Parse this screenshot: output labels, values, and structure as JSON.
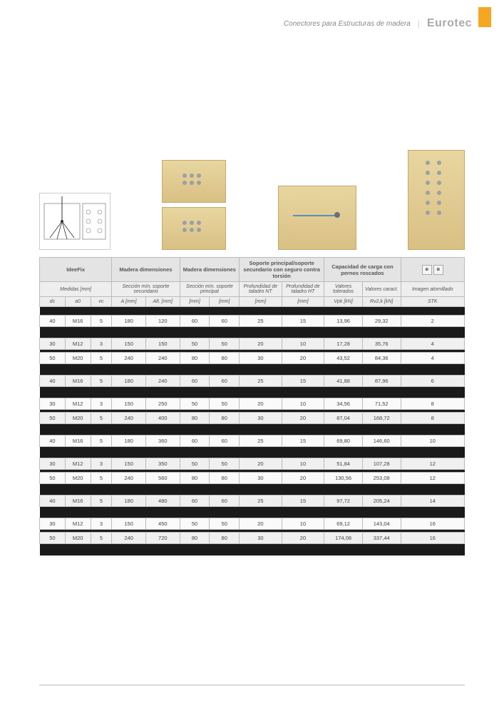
{
  "header": {
    "section": "Conectores para Estructuras de madera",
    "brand": "Eurotec"
  },
  "table": {
    "group_headers": {
      "ideefix": "IdeeFix",
      "madera1": "Madera dimensiones",
      "madera2": "Madera dimensiones",
      "soporte": "Soporte principal/soporte secundario con seguro contra torsión",
      "capacidad": "Capacidad de carga con pernos roscados",
      "imagen": ""
    },
    "sub_headers": {
      "medidas": "Medidas [mm]",
      "seccion_sec": "Sección mín. soporte secundario",
      "seccion_pri": "Sección mín. soporte principal",
      "prof_nt": "Profundidad de taladro NT",
      "prof_ht": "Profundidad de taladro HT",
      "val_tol": "Valores tolerados",
      "val_car": "Valores caract.",
      "imagen": "Imagen atornillado"
    },
    "col_headers": {
      "dc": "dc",
      "a0": "a0",
      "vc": "vc",
      "A": "A [mm]",
      "Alt": "Alt. [mm]",
      "mm1": "[mm]",
      "mm2": "[mm]",
      "mm3": "[mm]",
      "mm4": "[mm]",
      "Vpk": "Vpk [kN]",
      "Rvzk": "Rv2,k [kN]",
      "STK": "STK"
    },
    "rows": [
      {
        "dc": "40",
        "a0": "M16",
        "vc": "5",
        "A": "180",
        "Alt": "120",
        "m1": "60",
        "m2": "60",
        "m3": "25",
        "m4": "15",
        "Vpk": "13,96",
        "Rvzk": "29,32",
        "STK": "2"
      },
      {
        "dc": "30",
        "a0": "M12",
        "vc": "3",
        "A": "150",
        "Alt": "150",
        "m1": "50",
        "m2": "50",
        "m3": "20",
        "m4": "10",
        "Vpk": "17,28",
        "Rvzk": "35,76",
        "STK": "4"
      },
      {
        "dc": "50",
        "a0": "M20",
        "vc": "5",
        "A": "240",
        "Alt": "240",
        "m1": "80",
        "m2": "80",
        "m3": "30",
        "m4": "20",
        "Vpk": "43,52",
        "Rvzk": "84,36",
        "STK": "4"
      },
      {
        "dc": "40",
        "a0": "M16",
        "vc": "5",
        "A": "180",
        "Alt": "240",
        "m1": "60",
        "m2": "60",
        "m3": "25",
        "m4": "15",
        "Vpk": "41,88",
        "Rvzk": "87,96",
        "STK": "6"
      },
      {
        "dc": "30",
        "a0": "M12",
        "vc": "3",
        "A": "150",
        "Alt": "250",
        "m1": "50",
        "m2": "50",
        "m3": "20",
        "m4": "10",
        "Vpk": "34,56",
        "Rvzk": "71,52",
        "STK": "8"
      },
      {
        "dc": "50",
        "a0": "M20",
        "vc": "5",
        "A": "240",
        "Alt": "400",
        "m1": "80",
        "m2": "80",
        "m3": "30",
        "m4": "20",
        "Vpk": "87,04",
        "Rvzk": "168,72",
        "STK": "8"
      },
      {
        "dc": "40",
        "a0": "M16",
        "vc": "5",
        "A": "180",
        "Alt": "360",
        "m1": "60",
        "m2": "60",
        "m3": "25",
        "m4": "15",
        "Vpk": "69,80",
        "Rvzk": "146,60",
        "STK": "10"
      },
      {
        "dc": "30",
        "a0": "M12",
        "vc": "3",
        "A": "150",
        "Alt": "350",
        "m1": "50",
        "m2": "50",
        "m3": "20",
        "m4": "10",
        "Vpk": "51,84",
        "Rvzk": "107,28",
        "STK": "12"
      },
      {
        "dc": "50",
        "a0": "M20",
        "vc": "5",
        "A": "240",
        "Alt": "560",
        "m1": "80",
        "m2": "80",
        "m3": "30",
        "m4": "20",
        "Vpk": "130,56",
        "Rvzk": "253,08",
        "STK": "12"
      },
      {
        "dc": "40",
        "a0": "M16",
        "vc": "5",
        "A": "180",
        "Alt": "480",
        "m1": "60",
        "m2": "60",
        "m3": "25",
        "m4": "15",
        "Vpk": "97,72",
        "Rvzk": "205,24",
        "STK": "14"
      },
      {
        "dc": "30",
        "a0": "M12",
        "vc": "3",
        "A": "150",
        "Alt": "450",
        "m1": "50",
        "m2": "50",
        "m3": "20",
        "m4": "10",
        "Vpk": "69,12",
        "Rvzk": "143,04",
        "STK": "16"
      },
      {
        "dc": "50",
        "a0": "M20",
        "vc": "5",
        "A": "240",
        "Alt": "720",
        "m1": "80",
        "m2": "80",
        "m3": "30",
        "m4": "20",
        "Vpk": "174,08",
        "Rvzk": "337,44",
        "STK": "16"
      }
    ],
    "separators_after": [
      0,
      2,
      3,
      5,
      6,
      8,
      9
    ]
  },
  "styling": {
    "page_bg": "#ffffff",
    "orange": "#f5a623",
    "header_bg": "#e4e4e4",
    "subheader_bg": "#eeeeee",
    "border": "#bbbbbb",
    "dark_sep": "#1a1a1a",
    "row_bg": "#fafafa",
    "row_alt_bg": "#f0f0f0",
    "wood_light": "#e8d6a0",
    "wood_dark": "#d9c084"
  }
}
